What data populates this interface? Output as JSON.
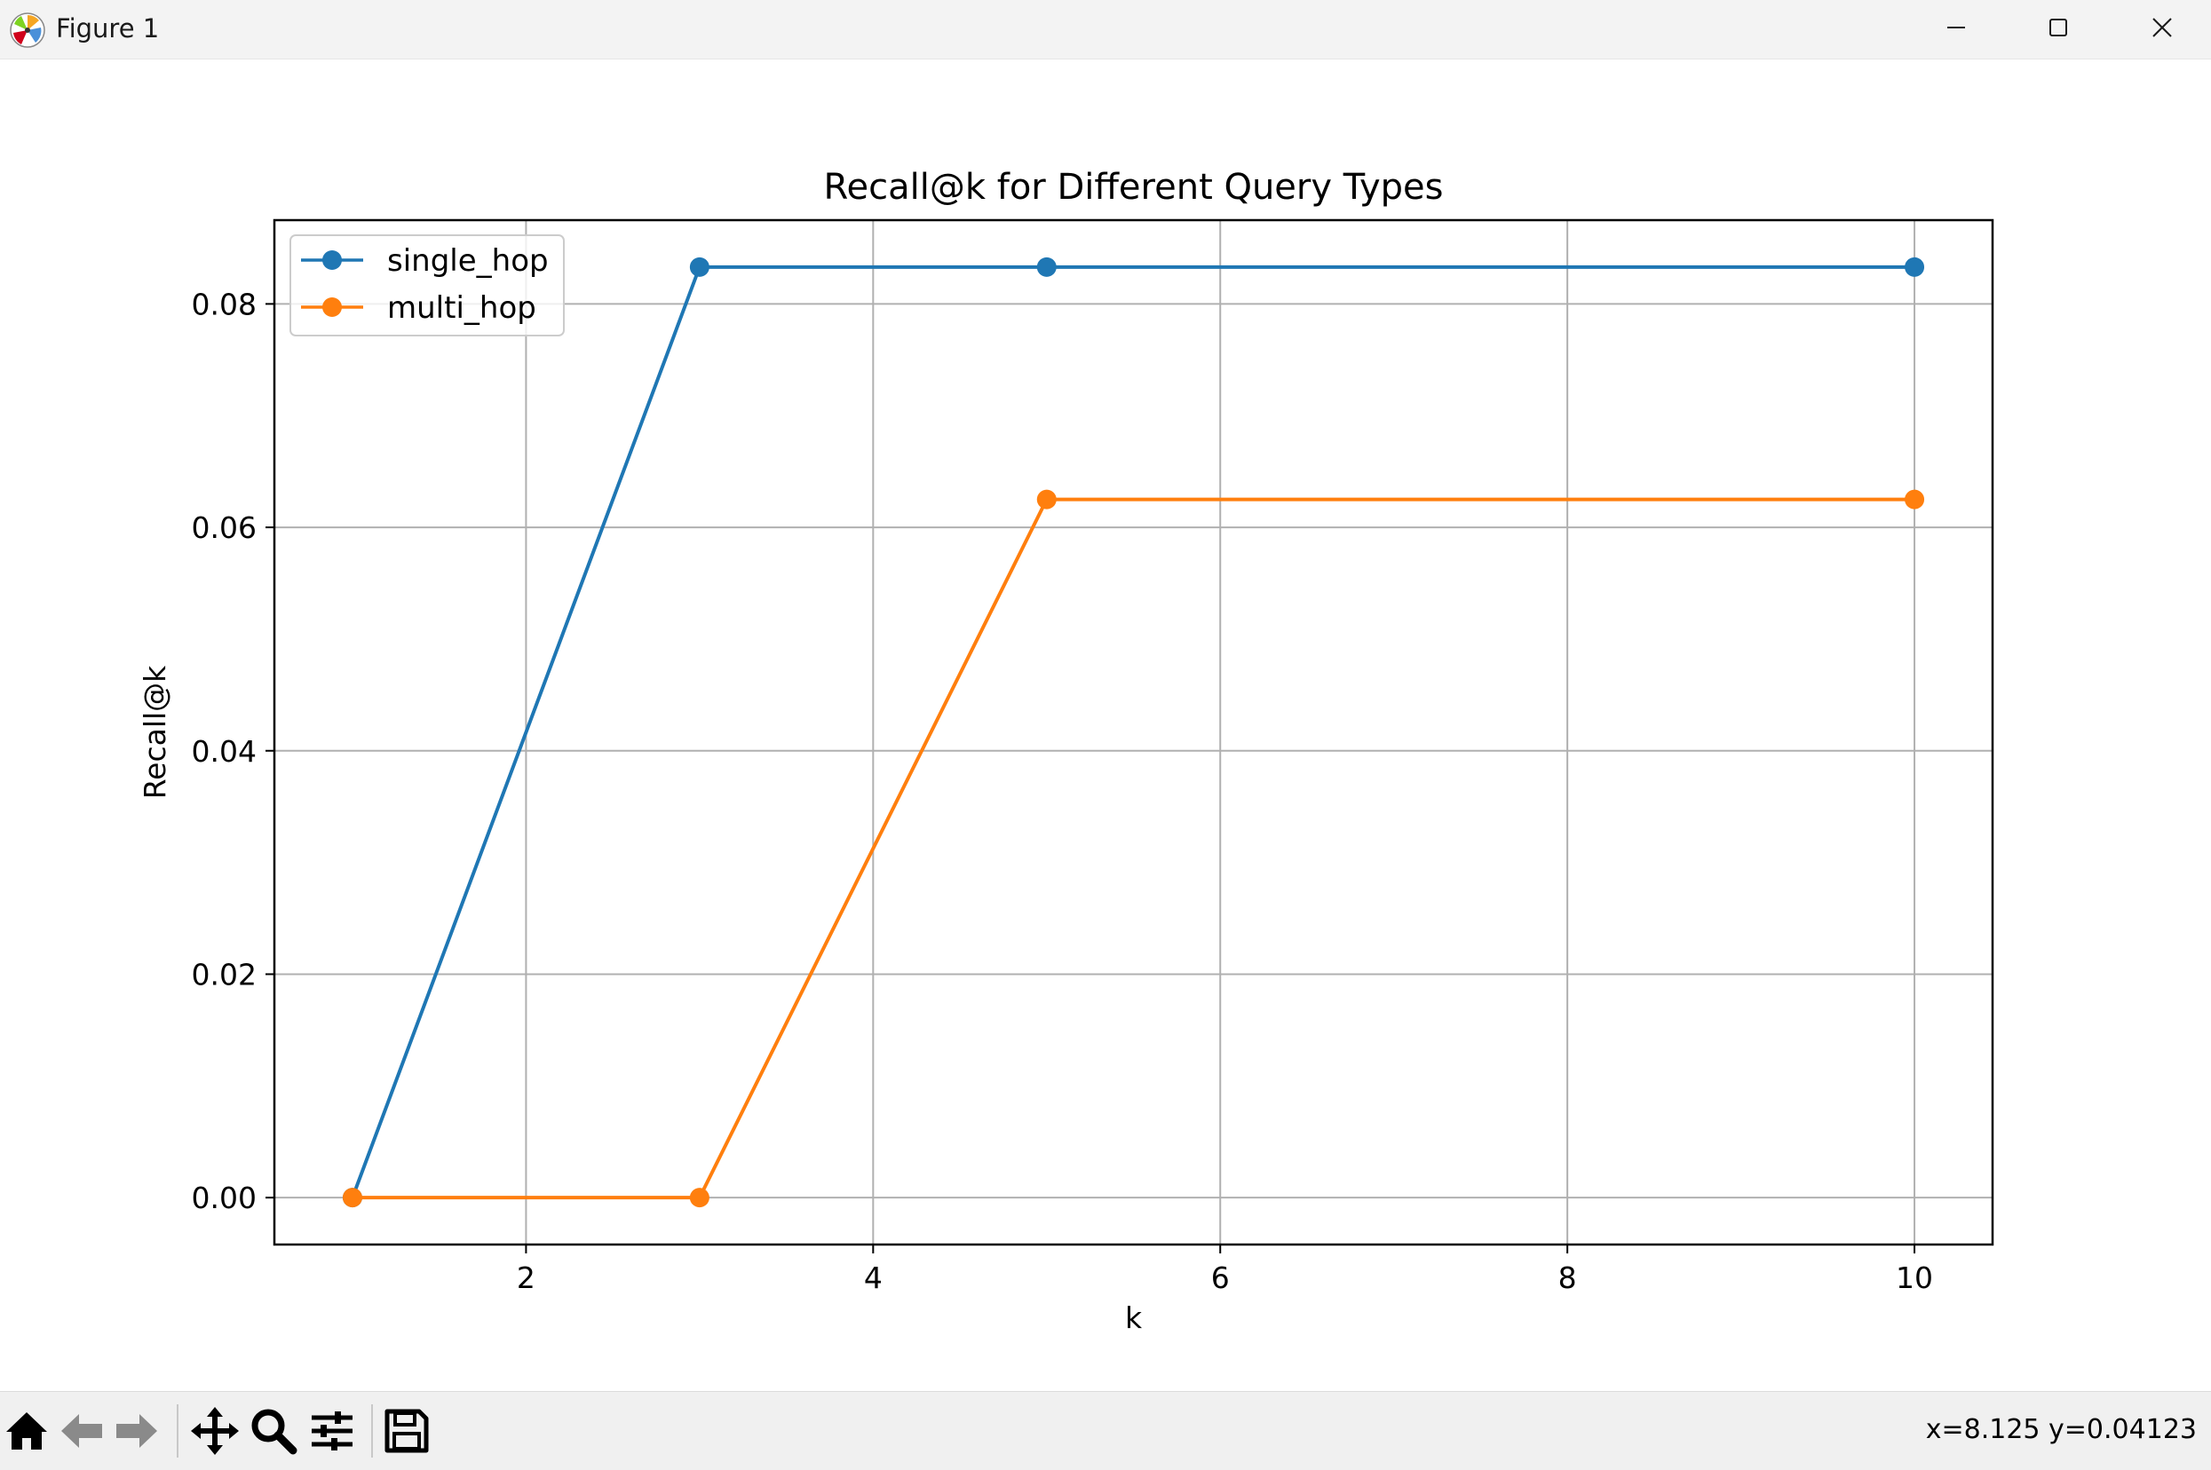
{
  "window": {
    "title": "Figure 1",
    "minimize_icon": "minimize-icon",
    "maximize_icon": "maximize-icon",
    "close_icon": "close-icon"
  },
  "toolbar": {
    "items": [
      "home-icon",
      "back-arrow-icon",
      "forward-arrow-icon",
      "pan-icon",
      "zoom-icon",
      "configure-subplots-icon",
      "save-icon"
    ],
    "coordinates": "x=8.125 y=0.04123"
  },
  "colors": {
    "single_hop": "#1f77b4",
    "multi_hop": "#ff7f0e",
    "grid": "#b0b0b0"
  },
  "chart_data": {
    "type": "line",
    "title": "Recall@k for Different Query Types",
    "xlabel": "k",
    "ylabel": "Recall@k",
    "x": [
      1,
      3,
      5,
      10
    ],
    "series": [
      {
        "name": "single_hop",
        "values": [
          0.0,
          0.0833,
          0.0833,
          0.0833
        ]
      },
      {
        "name": "multi_hop",
        "values": [
          0.0,
          0.0,
          0.0625,
          0.0625
        ]
      }
    ],
    "xlim": [
      0.55,
      10.45
    ],
    "ylim": [
      -0.0042,
      0.0875
    ],
    "xticks": [
      2,
      4,
      6,
      8,
      10
    ],
    "xtick_labels": [
      "2",
      "4",
      "6",
      "8",
      "10"
    ],
    "yticks": [
      0.0,
      0.02,
      0.04,
      0.06,
      0.08
    ],
    "ytick_labels": [
      "0.00",
      "0.02",
      "0.04",
      "0.06",
      "0.08"
    ],
    "grid": true,
    "legend_position": "top-left",
    "markers": "circle"
  }
}
